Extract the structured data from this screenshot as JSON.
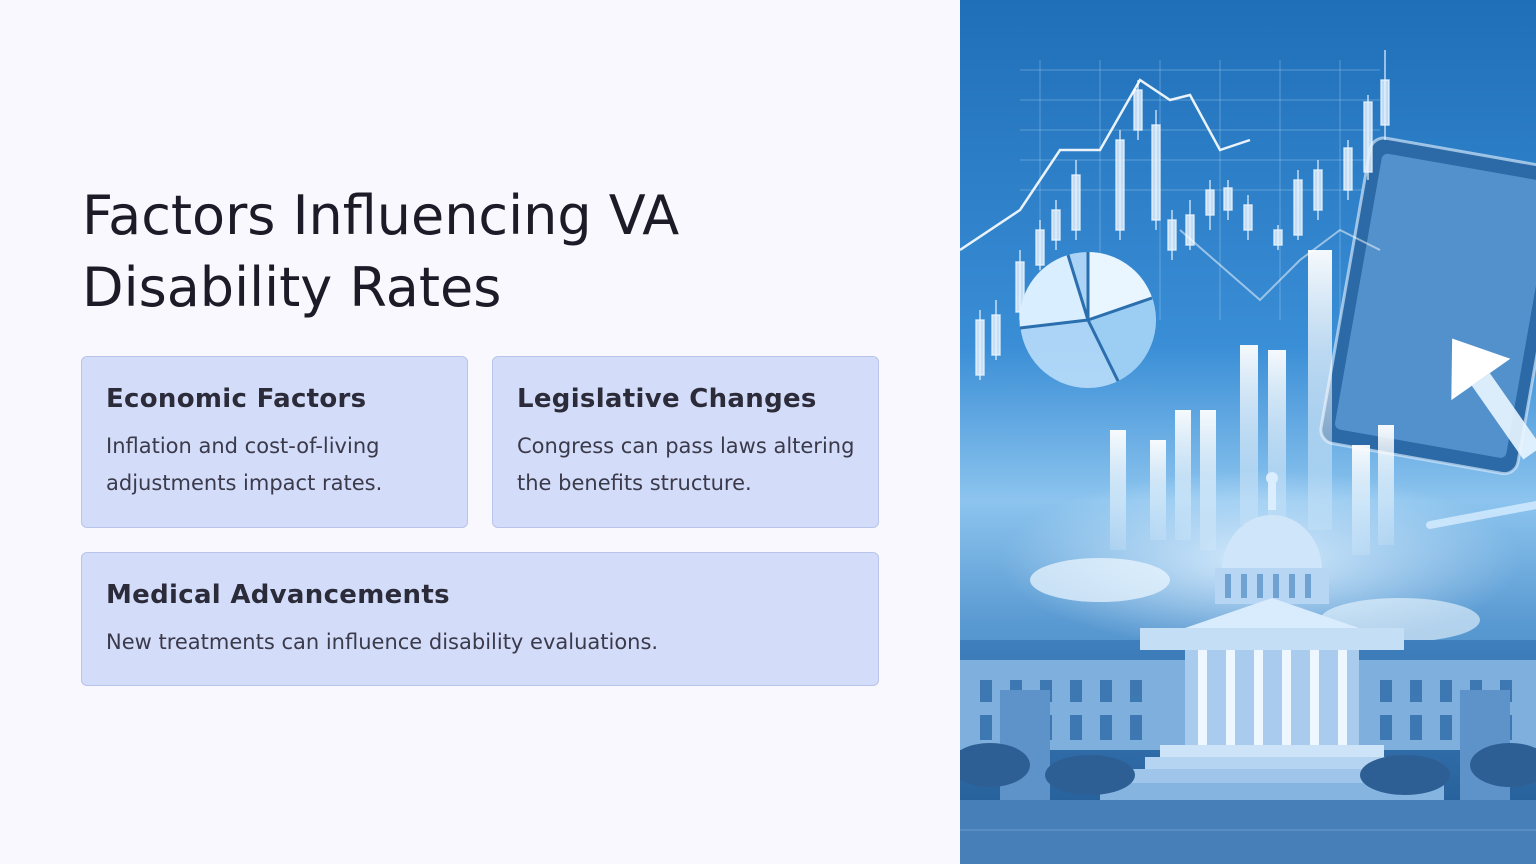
{
  "slide": {
    "title_line1": "Factors Influencing VA",
    "title_line2": "Disability Rates"
  },
  "cards": [
    {
      "title": "Economic Factors",
      "text": "Inflation and cost-of-living adjustments impact rates."
    },
    {
      "title": "Legislative Changes",
      "text": "Congress can pass laws altering the benefits structure."
    },
    {
      "title": "Medical Advancements",
      "text": "New treatments can influence disability evaluations."
    }
  ],
  "image": {
    "icon": "capitol-finance-illustration",
    "colors": {
      "deep_blue": "#1f6fb8",
      "light_blue": "#8cc4ee",
      "card_fill": "#d3dcf8",
      "card_border": "#b8c4ea",
      "background": "#f9f8fe"
    }
  }
}
